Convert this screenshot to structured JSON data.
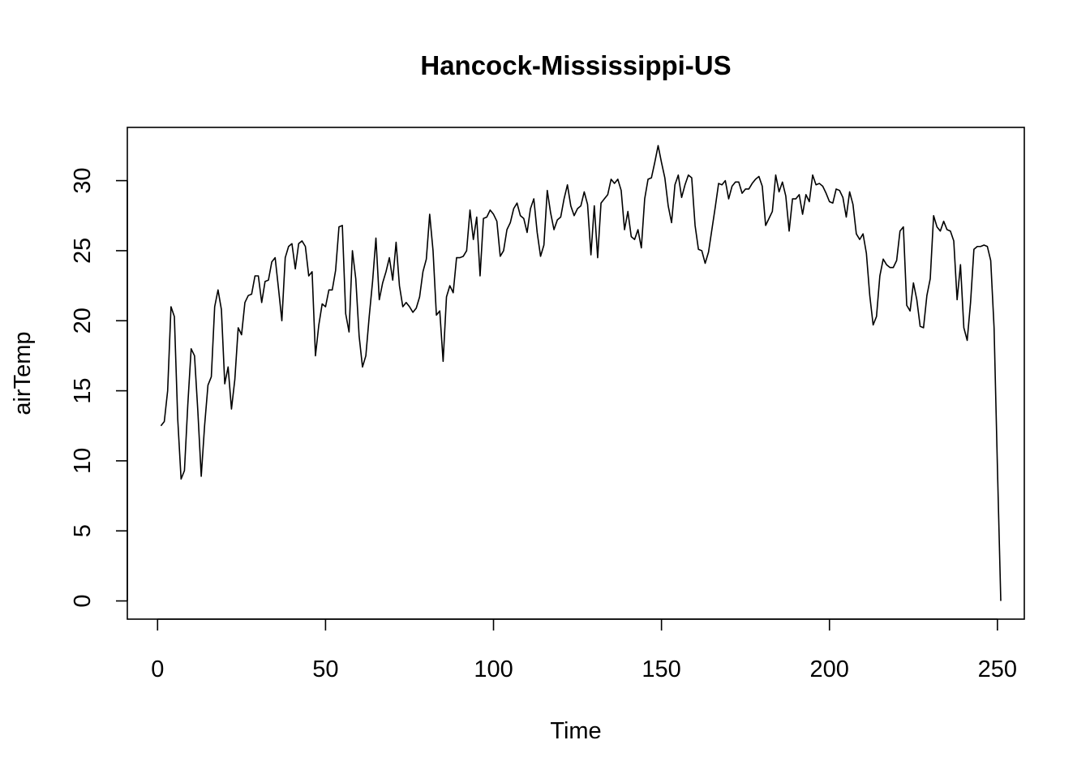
{
  "chart_data": {
    "type": "line",
    "title": "Hancock-Mississippi-US",
    "xlabel": "Time",
    "ylabel": "airTemp",
    "xlim": [
      -9,
      258
    ],
    "ylim": [
      -1.3,
      33.8
    ],
    "xticks": [
      0,
      50,
      100,
      150,
      200,
      250
    ],
    "yticks": [
      0,
      5,
      10,
      15,
      20,
      25,
      30
    ],
    "xtick_labels": [
      "0",
      "50",
      "100",
      "150",
      "200",
      "250"
    ],
    "ytick_labels": [
      "0",
      "5",
      "10",
      "15",
      "20",
      "25",
      "30"
    ],
    "grid": false,
    "line_color": "#000000",
    "series": [
      {
        "x_start": 1,
        "values": [
          12.5,
          12.8,
          15.0,
          21.0,
          20.3,
          13.0,
          8.7,
          9.3,
          14.0,
          18.0,
          17.5,
          13.5,
          8.9,
          12.5,
          15.4,
          16.0,
          21.0,
          22.2,
          20.8,
          15.5,
          16.7,
          13.7,
          15.8,
          19.5,
          19.0,
          21.3,
          21.8,
          21.9,
          23.2,
          23.2,
          21.3,
          22.8,
          22.9,
          24.2,
          24.5,
          22.3,
          20.0,
          24.5,
          25.3,
          25.5,
          23.7,
          25.5,
          25.7,
          25.3,
          23.2,
          23.5,
          17.5,
          19.7,
          21.2,
          21.0,
          22.2,
          22.2,
          23.6,
          26.7,
          26.8,
          20.5,
          19.2,
          25.0,
          23.0,
          18.9,
          16.7,
          17.5,
          20.3,
          22.8,
          25.9,
          21.5,
          22.7,
          23.5,
          24.5,
          22.9,
          25.6,
          22.5,
          21.0,
          21.3,
          21.0,
          20.6,
          20.9,
          21.7,
          23.5,
          24.4,
          27.6,
          25.0,
          20.4,
          20.7,
          17.1,
          21.7,
          22.5,
          22.0,
          24.5,
          24.5,
          24.6,
          25.0,
          27.9,
          25.8,
          27.4,
          23.2,
          27.3,
          27.4,
          27.9,
          27.6,
          27.1,
          24.6,
          25.0,
          26.5,
          27.0,
          28.0,
          28.4,
          27.5,
          27.3,
          26.3,
          28.0,
          28.7,
          26.3,
          24.6,
          25.4,
          29.3,
          27.7,
          26.5,
          27.2,
          27.4,
          28.7,
          29.7,
          28.2,
          27.5,
          28.0,
          28.2,
          29.2,
          28.3,
          24.7,
          28.2,
          24.5,
          28.4,
          28.7,
          29.0,
          30.1,
          29.8,
          30.1,
          29.3,
          26.5,
          27.8,
          26.0,
          25.8,
          26.5,
          25.2,
          28.7,
          30.1,
          30.2,
          31.3,
          32.5,
          31.3,
          30.2,
          28.2,
          27.0,
          29.7,
          30.4,
          28.8,
          29.7,
          30.4,
          30.2,
          26.8,
          25.1,
          25.0,
          24.1,
          24.9,
          26.5,
          28.1,
          29.8,
          29.7,
          30.0,
          28.7,
          29.6,
          29.9,
          29.9,
          29.1,
          29.4,
          29.4,
          29.8,
          30.1,
          30.3,
          29.6,
          26.8,
          27.3,
          27.8,
          30.4,
          29.2,
          29.9,
          28.9,
          26.4,
          28.7,
          28.7,
          29.0,
          27.6,
          29.0,
          28.5,
          30.4,
          29.7,
          29.8,
          29.6,
          29.1,
          28.5,
          28.4,
          29.4,
          29.3,
          28.8,
          27.4,
          29.2,
          28.3,
          26.2,
          25.8,
          26.2,
          24.8,
          21.8,
          19.7,
          20.3,
          23.2,
          24.4,
          24.0,
          23.8,
          23.8,
          24.3,
          26.4,
          26.7,
          21.1,
          20.7,
          22.7,
          21.5,
          19.6,
          19.5,
          21.8,
          23.0,
          27.5,
          26.7,
          26.4,
          27.1,
          26.5,
          26.4,
          25.7,
          21.5,
          24.0,
          19.5,
          18.6,
          21.3,
          25.1,
          25.3,
          25.3,
          25.4,
          25.3,
          24.3,
          19.5,
          9.5,
          0.0
        ]
      }
    ]
  }
}
